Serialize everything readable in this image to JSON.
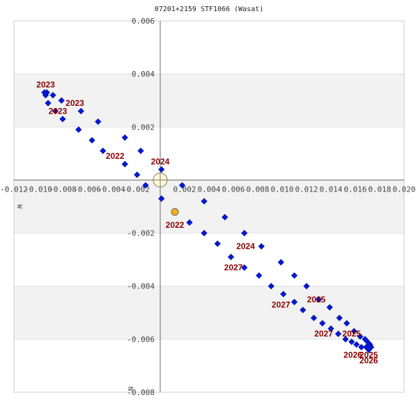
{
  "title": "07201+2159 STF1066 (Wasat)",
  "chart_data": {
    "type": "scatter",
    "title": "07201+2159 STF1066 (Wasat)",
    "xlabel": "W",
    "ylabel": "N",
    "xlim": [
      -0.012,
      0.02
    ],
    "ylim": [
      -0.008,
      0.006
    ],
    "x_ticks": [
      "-0.012",
      "-0.010",
      "-0.008",
      "-0.006",
      "-0.004",
      "-0.002",
      "0.002",
      "0.004",
      "0.006",
      "0.008",
      "0.010",
      "0.012",
      "0.014",
      "0.016",
      "0.018",
      "0.020"
    ],
    "x_tick_values": [
      -0.012,
      -0.01,
      -0.008,
      -0.006,
      -0.004,
      -0.002,
      0.002,
      0.004,
      0.006,
      0.008,
      0.01,
      0.012,
      0.014,
      0.016,
      0.018,
      0.02
    ],
    "y_ticks": [
      "0.006",
      "0.004",
      "0.002",
      "-0.002",
      "-0.004",
      "-0.006",
      "-0.008"
    ],
    "y_tick_values": [
      0.006,
      0.004,
      0.002,
      -0.002,
      -0.004,
      -0.006,
      -0.008
    ],
    "primary": {
      "x": 0.0,
      "y": 0.0,
      "color": "#fffbd0"
    },
    "highlight": {
      "x": 0.0012,
      "y": -0.0012,
      "color": "#f2b21a"
    },
    "series": [
      {
        "name": "orbit positions",
        "color": "#0019d6",
        "points": [
          {
            "x": -0.0093,
            "y": 0.0033
          },
          {
            "x": -0.0095,
            "y": 0.0033
          },
          {
            "x": -0.0094,
            "y": 0.0032
          },
          {
            "x": -0.0088,
            "y": 0.0032
          },
          {
            "x": -0.0081,
            "y": 0.003
          },
          {
            "x": -0.0092,
            "y": 0.0029
          },
          {
            "x": -0.0086,
            "y": 0.0026
          },
          {
            "x": -0.0065,
            "y": 0.0026
          },
          {
            "x": -0.008,
            "y": 0.0023
          },
          {
            "x": -0.0051,
            "y": 0.0022
          },
          {
            "x": -0.0067,
            "y": 0.0019
          },
          {
            "x": -0.0029,
            "y": 0.0016
          },
          {
            "x": -0.0056,
            "y": 0.0015
          },
          {
            "x": -0.0047,
            "y": 0.0011
          },
          {
            "x": -0.0016,
            "y": 0.0011
          },
          {
            "x": -0.0029,
            "y": 0.0006
          },
          {
            "x": 0.0001,
            "y": 0.0004
          },
          {
            "x": -0.0019,
            "y": 0.0002
          },
          {
            "x": -0.0012,
            "y": -0.0002
          },
          {
            "x": 0.0018,
            "y": -0.0002
          },
          {
            "x": 0.0001,
            "y": -0.0007
          },
          {
            "x": 0.0036,
            "y": -0.0008
          },
          {
            "x": 0.0053,
            "y": -0.0014
          },
          {
            "x": 0.0024,
            "y": -0.0016
          },
          {
            "x": 0.0036,
            "y": -0.002
          },
          {
            "x": 0.0069,
            "y": -0.002
          },
          {
            "x": 0.0047,
            "y": -0.0024
          },
          {
            "x": 0.0083,
            "y": -0.0025
          },
          {
            "x": 0.0058,
            "y": -0.0029
          },
          {
            "x": 0.0099,
            "y": -0.0031
          },
          {
            "x": 0.0069,
            "y": -0.0033
          },
          {
            "x": 0.0081,
            "y": -0.0036
          },
          {
            "x": 0.011,
            "y": -0.0036
          },
          {
            "x": 0.0091,
            "y": -0.004
          },
          {
            "x": 0.012,
            "y": -0.004
          },
          {
            "x": 0.0101,
            "y": -0.0043
          },
          {
            "x": 0.013,
            "y": -0.0045
          },
          {
            "x": 0.011,
            "y": -0.0046
          },
          {
            "x": 0.0139,
            "y": -0.0048
          },
          {
            "x": 0.0117,
            "y": -0.0049
          },
          {
            "x": 0.0147,
            "y": -0.0052
          },
          {
            "x": 0.0126,
            "y": -0.0052
          },
          {
            "x": 0.0153,
            "y": -0.0054
          },
          {
            "x": 0.0133,
            "y": -0.0054
          },
          {
            "x": 0.0159,
            "y": -0.0057
          },
          {
            "x": 0.014,
            "y": -0.0056
          },
          {
            "x": 0.0164,
            "y": -0.0059
          },
          {
            "x": 0.0146,
            "y": -0.0058
          },
          {
            "x": 0.0168,
            "y": -0.006
          },
          {
            "x": 0.0152,
            "y": -0.006
          },
          {
            "x": 0.017,
            "y": -0.0061
          },
          {
            "x": 0.0157,
            "y": -0.0061
          },
          {
            "x": 0.0172,
            "y": -0.0062
          },
          {
            "x": 0.0161,
            "y": -0.0062
          },
          {
            "x": 0.0173,
            "y": -0.0063
          },
          {
            "x": 0.0165,
            "y": -0.0063
          },
          {
            "x": 0.0169,
            "y": -0.0063
          },
          {
            "x": 0.0171,
            "y": -0.0064
          }
        ]
      }
    ],
    "annotations": [
      {
        "text": "2023",
        "x": -0.0094,
        "y": 0.0036
      },
      {
        "text": "2023",
        "x": -0.007,
        "y": 0.0029
      },
      {
        "text": "2023",
        "x": -0.0084,
        "y": 0.0026
      },
      {
        "text": "2022",
        "x": -0.0037,
        "y": 0.0009
      },
      {
        "text": "2024",
        "x": 0.0,
        "y": 0.0007
      },
      {
        "text": "2022",
        "x": 0.0012,
        "y": -0.0017
      },
      {
        "text": "2024",
        "x": 0.007,
        "y": -0.0025
      },
      {
        "text": "2027",
        "x": 0.006,
        "y": -0.0033
      },
      {
        "text": "2027",
        "x": 0.0099,
        "y": -0.0047
      },
      {
        "text": "2025",
        "x": 0.0128,
        "y": -0.0045
      },
      {
        "text": "2027",
        "x": 0.0134,
        "y": -0.0058
      },
      {
        "text": "2025",
        "x": 0.0157,
        "y": -0.0058
      },
      {
        "text": "2026",
        "x": 0.0158,
        "y": -0.0066
      },
      {
        "text": "2025",
        "x": 0.0171,
        "y": -0.0066
      },
      {
        "text": "2026",
        "x": 0.0171,
        "y": -0.0068
      }
    ]
  }
}
